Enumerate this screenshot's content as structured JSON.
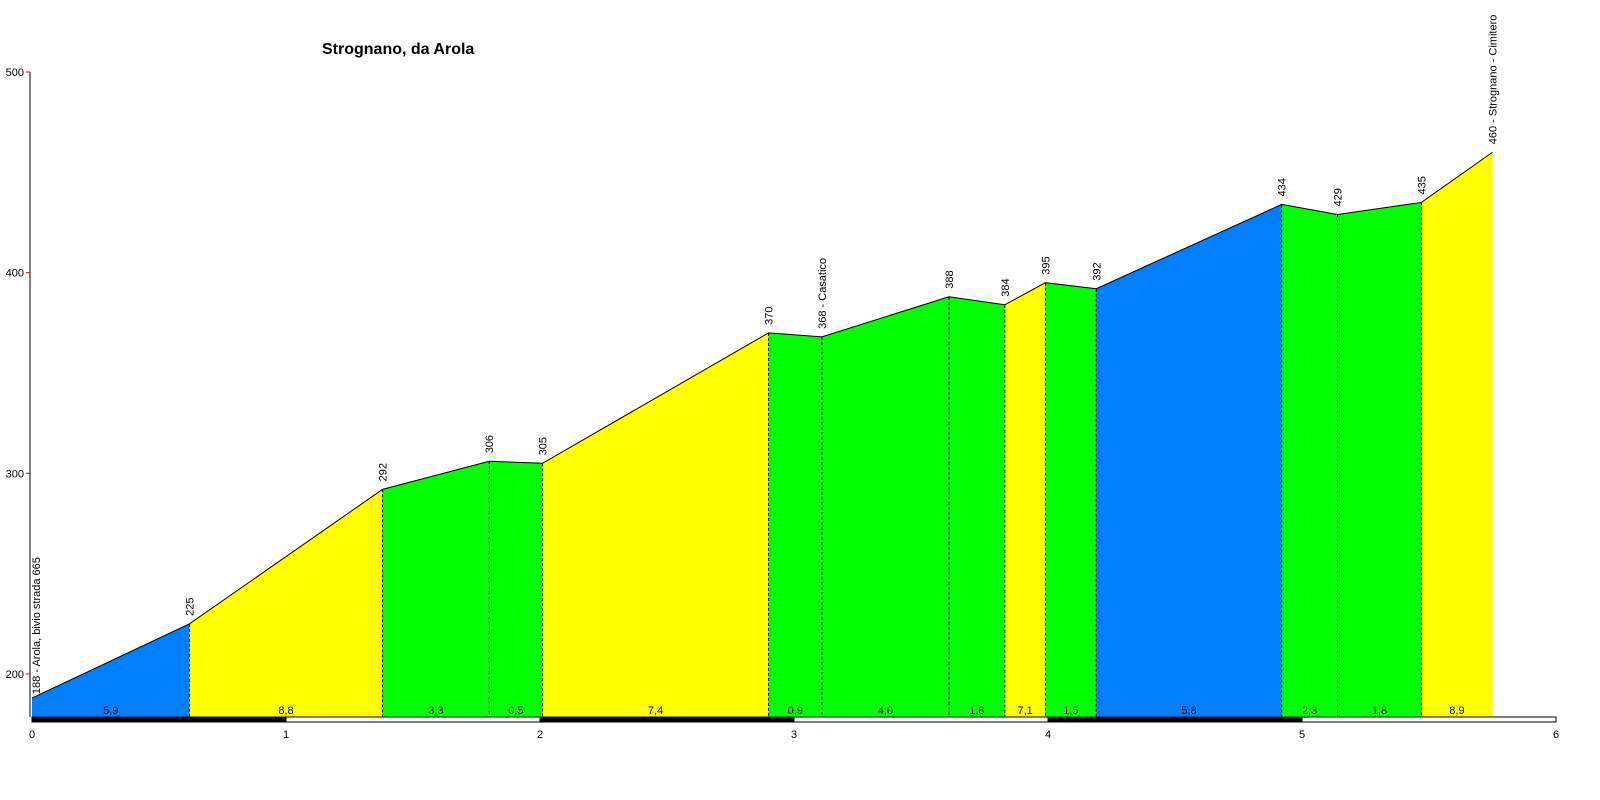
{
  "chart_data": {
    "type": "area",
    "title": "Strognano, da Arola",
    "xlabel": "",
    "ylabel": "",
    "xlim": [
      0,
      6
    ],
    "ylim": [
      178,
      500
    ],
    "x_ticks": [
      "0",
      "1",
      "2",
      "3",
      "4",
      "5",
      "6"
    ],
    "y_ticks": [
      "200",
      "300",
      "400",
      "500"
    ],
    "points": [
      {
        "x": 0.0,
        "y": 188,
        "label": "188 - Arola, bivio strada 665"
      },
      {
        "x": 0.62,
        "y": 225,
        "label": "225"
      },
      {
        "x": 1.38,
        "y": 292,
        "label": "292"
      },
      {
        "x": 1.8,
        "y": 306,
        "label": "306"
      },
      {
        "x": 2.01,
        "y": 305,
        "label": "305"
      },
      {
        "x": 2.9,
        "y": 370,
        "label": "370"
      },
      {
        "x": 3.11,
        "y": 368,
        "label": "368 - Casatico"
      },
      {
        "x": 3.61,
        "y": 388,
        "label": "388"
      },
      {
        "x": 3.83,
        "y": 384,
        "label": "384"
      },
      {
        "x": 3.99,
        "y": 395,
        "label": "395"
      },
      {
        "x": 4.19,
        "y": 392,
        "label": "392"
      },
      {
        "x": 4.92,
        "y": 434,
        "label": "434"
      },
      {
        "x": 5.14,
        "y": 429,
        "label": "429"
      },
      {
        "x": 5.47,
        "y": 435,
        "label": "435"
      },
      {
        "x": 5.75,
        "y": 460,
        "label": "460 - Strognano - Cimitero"
      }
    ],
    "segments": [
      {
        "gradient": "5,9",
        "color": "#0080ff"
      },
      {
        "gradient": "8,8",
        "color": "#ffff00"
      },
      {
        "gradient": "3,3",
        "color": "#00ff00"
      },
      {
        "gradient": "0,5",
        "color": "#00ff00"
      },
      {
        "gradient": "7,4",
        "color": "#ffff00"
      },
      {
        "gradient": "0,9",
        "color": "#00ff00"
      },
      {
        "gradient": "4,0",
        "color": "#00ff00"
      },
      {
        "gradient": "1,8",
        "color": "#00ff00"
      },
      {
        "gradient": "7,1",
        "color": "#ffff00"
      },
      {
        "gradient": "1,5",
        "color": "#00ff00"
      },
      {
        "gradient": "5,8",
        "color": "#0080ff"
      },
      {
        "gradient": "2,3",
        "color": "#00ff00"
      },
      {
        "gradient": "1,8",
        "color": "#00ff00"
      },
      {
        "gradient": "8,9",
        "color": "#ffff00"
      }
    ],
    "axis_color": "#000000",
    "tick_mark_color": "#cc0000"
  }
}
